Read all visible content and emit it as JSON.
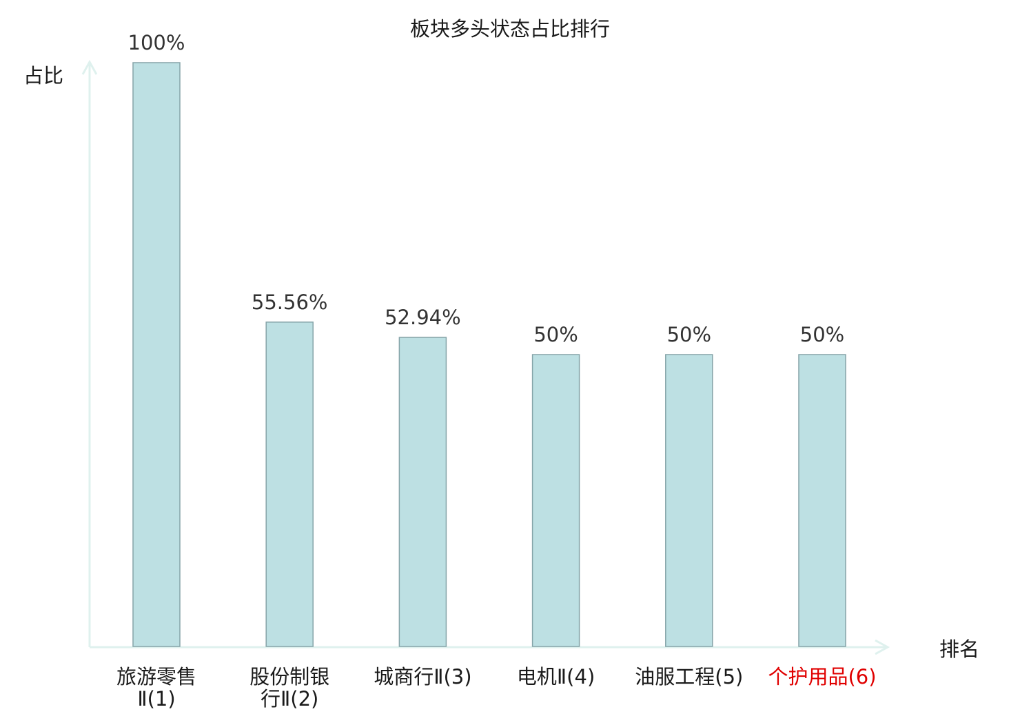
{
  "chart_data": {
    "type": "bar",
    "title": "板块多头状态占比排行",
    "xlabel": "排名",
    "ylabel": "占比",
    "categories": [
      "旅游零售Ⅱ(1)",
      "股份制银行Ⅱ(2)",
      "城商行Ⅱ(3)",
      "电机Ⅱ(4)",
      "油服工程(5)",
      "个护用品(6)"
    ],
    "category_lines": [
      [
        "旅游零售",
        "Ⅱ(1)"
      ],
      [
        "股份制银",
        "行Ⅱ(2)"
      ],
      [
        "城商行Ⅱ(3)"
      ],
      [
        "电机Ⅱ(4)"
      ],
      [
        "油服工程(5)"
      ],
      [
        "个护用品(6)"
      ]
    ],
    "values": [
      100,
      55.56,
      52.94,
      50,
      50,
      50
    ],
    "value_labels": [
      "100%",
      "55.56%",
      "52.94%",
      "50%",
      "50%",
      "50%"
    ],
    "highlight_index": 5,
    "ylim": [
      0,
      100
    ],
    "grid": false,
    "colors": {
      "bar_fill": "#bde0e3",
      "bar_stroke": "#85a4a8",
      "axis": "#dff1ee",
      "highlight": "#e00000",
      "text": "#1a1a1a"
    }
  }
}
